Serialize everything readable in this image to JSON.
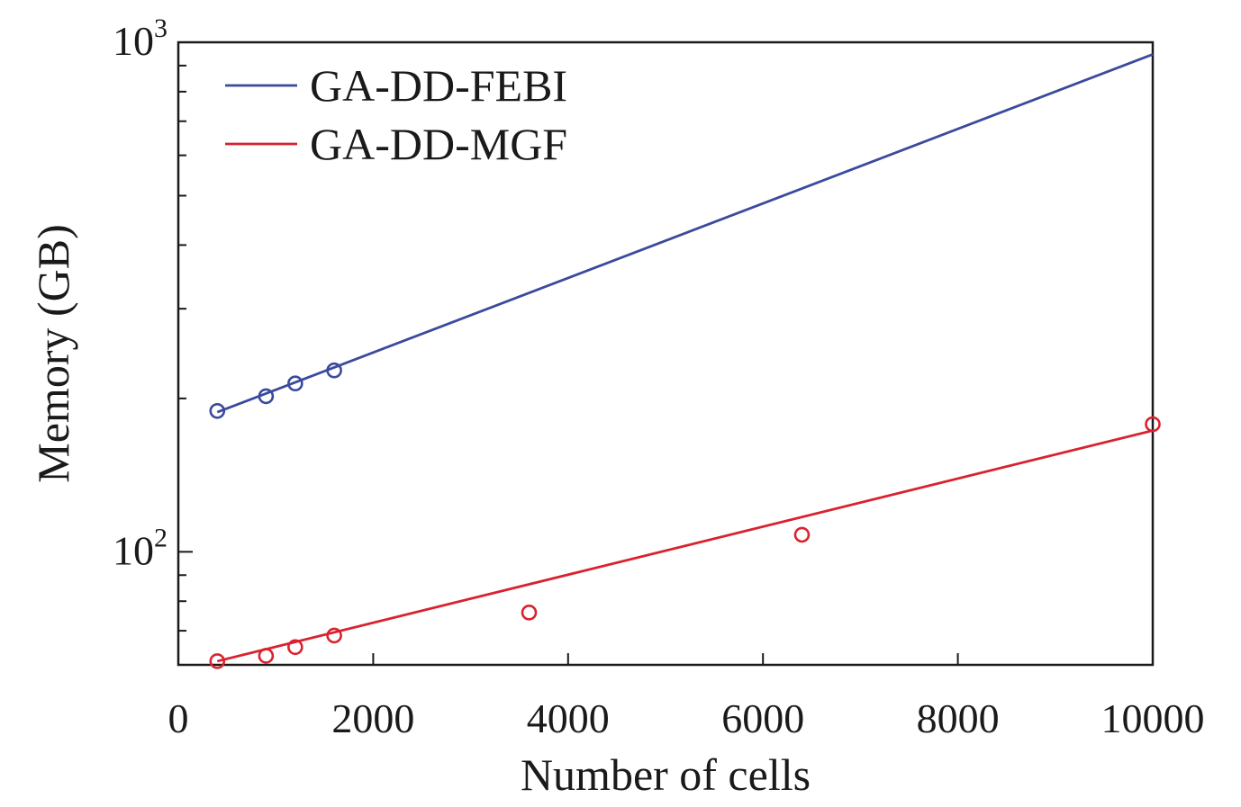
{
  "chart_data": {
    "type": "line",
    "xlabel": "Number of cells",
    "ylabel": "Memory (GB)",
    "xlim": [
      0,
      10000
    ],
    "ylim": [
      60,
      1000
    ],
    "y_scale": "log",
    "grid": false,
    "legend_position": "top-left",
    "x_ticks": [
      0,
      2000,
      4000,
      6000,
      8000,
      10000
    ],
    "x_tick_labels": [
      "0",
      "2000",
      "4000",
      "6000",
      "8000",
      "10000"
    ],
    "y_major_ticks": [
      100,
      1000
    ],
    "y_tick_labels": [
      {
        "value": 100,
        "base": "10",
        "exp": "2"
      },
      {
        "value": 1000,
        "base": "10",
        "exp": "3"
      }
    ],
    "y_minor_ticks": [
      60,
      70,
      80,
      90,
      200,
      300,
      400,
      500,
      600,
      700,
      800,
      900
    ],
    "series": [
      {
        "name": "GA-DD-FEBI",
        "color": "#3b4a9c",
        "points": [
          {
            "x": 400,
            "y": 189
          },
          {
            "x": 900,
            "y": 202
          },
          {
            "x": 1200,
            "y": 214
          },
          {
            "x": 1600,
            "y": 227
          }
        ],
        "fit": [
          {
            "x": 400,
            "y": 188
          },
          {
            "x": 10000,
            "y": 947
          }
        ]
      },
      {
        "name": "GA-DD-MGF",
        "color": "#d8232f",
        "points": [
          {
            "x": 400,
            "y": 61
          },
          {
            "x": 900,
            "y": 62.5
          },
          {
            "x": 1200,
            "y": 65
          },
          {
            "x": 1600,
            "y": 68.5
          },
          {
            "x": 3600,
            "y": 76
          },
          {
            "x": 6400,
            "y": 108
          },
          {
            "x": 10000,
            "y": 178
          }
        ],
        "fit": [
          {
            "x": 400,
            "y": 61
          },
          {
            "x": 10000,
            "y": 173
          }
        ]
      }
    ]
  }
}
